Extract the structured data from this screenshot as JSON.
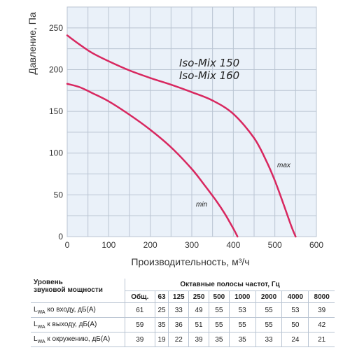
{
  "chart_data": {
    "type": "line",
    "xlabel": "Производительность, м³/ч",
    "ylabel": "Давление, Па",
    "xlim": [
      0,
      600
    ],
    "ylim": [
      0,
      275
    ],
    "x_ticks": [
      "0",
      "100",
      "200",
      "300",
      "400",
      "500",
      "600"
    ],
    "y_ticks": [
      "0",
      "50",
      "100",
      "150",
      "200",
      "250"
    ],
    "grid": true,
    "model_labels": [
      "Iso-Mix 150",
      "Iso-Mix 160"
    ],
    "series": [
      {
        "name": "max",
        "color": "#d8275f",
        "x": [
          0,
          30,
          60,
          100,
          150,
          200,
          250,
          300,
          350,
          400,
          450,
          480,
          500,
          520,
          540,
          550
        ],
        "y": [
          241,
          230,
          220,
          210,
          199,
          190,
          182,
          173,
          163,
          147,
          118,
          90,
          67,
          40,
          12,
          0
        ]
      },
      {
        "name": "min",
        "color": "#d8275f",
        "x": [
          0,
          30,
          60,
          100,
          150,
          200,
          250,
          300,
          330,
          360,
          380,
          395,
          405,
          410
        ],
        "y": [
          183,
          179,
          172,
          162,
          146,
          128,
          107,
          81,
          62,
          42,
          27,
          14,
          5,
          0
        ]
      }
    ]
  },
  "table": {
    "title_line1": "Уровень",
    "title_line2": "звуковой мощности",
    "bands_title": "Октавные полосы частот, Гц",
    "columns": [
      "Общ.",
      "63",
      "125",
      "250",
      "500",
      "1000",
      "2000",
      "4000",
      "8000"
    ],
    "rows": [
      {
        "label_sub": "WA",
        "label_rest": " ко входу, дБ(A)",
        "values": [
          "61",
          "25",
          "33",
          "49",
          "55",
          "53",
          "55",
          "53",
          "39"
        ]
      },
      {
        "label_sub": "WA",
        "label_rest": " к выходу, дБ(A)",
        "values": [
          "59",
          "35",
          "36",
          "51",
          "55",
          "55",
          "55",
          "50",
          "42"
        ]
      },
      {
        "label_sub": "WA",
        "label_rest": " к окружению, дБ(A)",
        "values": [
          "39",
          "19",
          "22",
          "39",
          "35",
          "35",
          "33",
          "24",
          "21"
        ]
      }
    ]
  }
}
